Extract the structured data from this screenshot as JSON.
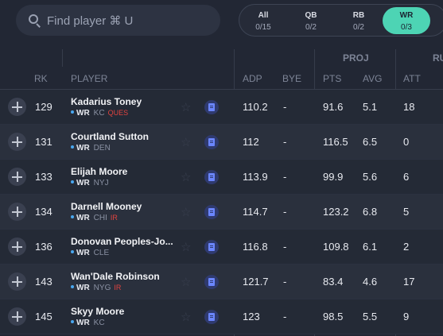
{
  "search": {
    "placeholder": "Find player ⌘ U"
  },
  "filters": [
    {
      "label": "All",
      "count": "0/15"
    },
    {
      "label": "QB",
      "count": "0/2"
    },
    {
      "label": "RB",
      "count": "0/2"
    },
    {
      "label": "WR",
      "count": "0/3",
      "active": true
    }
  ],
  "groups": {
    "proj": "PROJ",
    "next": "RU"
  },
  "columns": {
    "rk": "RK",
    "player": "PLAYER",
    "adp": "ADP",
    "bye": "BYE",
    "pts": "PTS",
    "avg": "AVG",
    "att": "ATT"
  },
  "rows": [
    {
      "rk": "129",
      "name": "Kadarius Toney",
      "pos": "WR",
      "team": "KC",
      "status": "QUES",
      "adp": "110.2",
      "bye": "-",
      "pts": "91.6",
      "avg": "5.1",
      "att": "18"
    },
    {
      "rk": "131",
      "name": "Courtland Sutton",
      "pos": "WR",
      "team": "DEN",
      "status": "",
      "adp": "112",
      "bye": "-",
      "pts": "116.5",
      "avg": "6.5",
      "att": "0"
    },
    {
      "rk": "133",
      "name": "Elijah Moore",
      "pos": "WR",
      "team": "NYJ",
      "status": "",
      "adp": "113.9",
      "bye": "-",
      "pts": "99.9",
      "avg": "5.6",
      "att": "6"
    },
    {
      "rk": "134",
      "name": "Darnell Mooney",
      "pos": "WR",
      "team": "CHI",
      "status": "IR",
      "adp": "114.7",
      "bye": "-",
      "pts": "123.2",
      "avg": "6.8",
      "att": "5"
    },
    {
      "rk": "136",
      "name": "Donovan Peoples-Jo...",
      "pos": "WR",
      "team": "CLE",
      "status": "",
      "adp": "116.8",
      "bye": "-",
      "pts": "109.8",
      "avg": "6.1",
      "att": "2"
    },
    {
      "rk": "143",
      "name": "Wan'Dale Robinson",
      "pos": "WR",
      "team": "NYG",
      "status": "IR",
      "adp": "121.7",
      "bye": "-",
      "pts": "83.4",
      "avg": "4.6",
      "att": "17"
    },
    {
      "rk": "145",
      "name": "Skyy Moore",
      "pos": "WR",
      "team": "KC",
      "status": "",
      "adp": "123",
      "bye": "-",
      "pts": "98.5",
      "avg": "5.5",
      "att": "9"
    }
  ],
  "icons": {
    "search": "search-icon",
    "add": "plus-icon",
    "star": "star-icon",
    "notes": "notes-icon"
  },
  "colors": {
    "accent": "#4dd4b4",
    "status": "#e0433f",
    "position_dot": "#4aa8f0"
  }
}
